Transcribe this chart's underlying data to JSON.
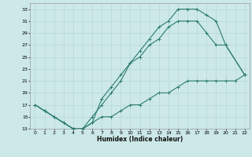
{
  "xlabel": "Humidex (Indice chaleur)",
  "bg_color": "#cce8e8",
  "grid_color": "#b8d8d8",
  "line_color": "#2d7d6f",
  "xlim": [
    -0.5,
    22.5
  ],
  "ylim": [
    13,
    34
  ],
  "xticks": [
    0,
    1,
    2,
    3,
    4,
    5,
    6,
    7,
    8,
    9,
    10,
    11,
    12,
    13,
    14,
    15,
    16,
    17,
    18,
    19,
    20,
    21,
    22
  ],
  "yticks": [
    13,
    15,
    17,
    19,
    21,
    23,
    25,
    27,
    29,
    31,
    33
  ],
  "upper_x": [
    0,
    1,
    2,
    3,
    4,
    5,
    6,
    7,
    8,
    9,
    10,
    11,
    12,
    13,
    14,
    15,
    16,
    17,
    18,
    19,
    20,
    22
  ],
  "upper_y": [
    17,
    16,
    15,
    14,
    13,
    13,
    14,
    18,
    20,
    22,
    24,
    26,
    28,
    30,
    31,
    33,
    33,
    33,
    32,
    31,
    27,
    22
  ],
  "mid_x": [
    0,
    1,
    2,
    3,
    4,
    5,
    6,
    7,
    8,
    9,
    10,
    11,
    12,
    13,
    14,
    15,
    16,
    17,
    18,
    19,
    20,
    22
  ],
  "mid_y": [
    17,
    16,
    15,
    14,
    13,
    13,
    15,
    17,
    19,
    21,
    24,
    25,
    27,
    28,
    30,
    31,
    31,
    31,
    29,
    27,
    27,
    22
  ],
  "lower_x": [
    0,
    1,
    2,
    3,
    4,
    5,
    6,
    7,
    8,
    9,
    10,
    11,
    12,
    13,
    14,
    15,
    16,
    17,
    18,
    19,
    20,
    21,
    22
  ],
  "lower_y": [
    17,
    16,
    15,
    14,
    13,
    13,
    14,
    15,
    15,
    16,
    17,
    17,
    18,
    19,
    19,
    20,
    21,
    21,
    21,
    21,
    21,
    21,
    22
  ]
}
